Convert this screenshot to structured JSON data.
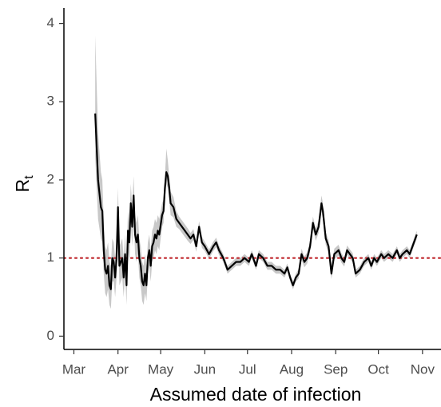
{
  "chart_data": {
    "type": "line",
    "xlabel": "Assumed date of infection",
    "ylabel": "R",
    "ylabel_subscript": "t",
    "xlim": [
      -7,
      258
    ],
    "xticks": [
      {
        "value": 0,
        "label": "Mar"
      },
      {
        "value": 31,
        "label": "Apr"
      },
      {
        "value": 61,
        "label": "May"
      },
      {
        "value": 92,
        "label": "Jun"
      },
      {
        "value": 122,
        "label": "Jul"
      },
      {
        "value": 153,
        "label": "Aug"
      },
      {
        "value": 184,
        "label": "Sep"
      },
      {
        "value": 214,
        "label": "Oct"
      },
      {
        "value": 245,
        "label": "Nov"
      }
    ],
    "ylim": [
      -0.17,
      4.2
    ],
    "yticks": [
      0,
      1,
      2,
      3,
      4
    ],
    "color": "#000000",
    "band_color": "#c8c8c8",
    "reference_line": 1,
    "reference_color": "#c0272d",
    "x": [
      15,
      17,
      19,
      20,
      21,
      22,
      23,
      24,
      25,
      26,
      27,
      28,
      29,
      30,
      31,
      32,
      33,
      34,
      35,
      36,
      37,
      38,
      39,
      40,
      41,
      42,
      43,
      44,
      45,
      46,
      47,
      48,
      49,
      50,
      51,
      52,
      53,
      54,
      55,
      56,
      57,
      58,
      59,
      60,
      62,
      63,
      64,
      65,
      66,
      67,
      68,
      70,
      72,
      74,
      76,
      78,
      80,
      82,
      84,
      86,
      88,
      90,
      92,
      95,
      98,
      100,
      102,
      105,
      108,
      111,
      114,
      117,
      120,
      123,
      125,
      128,
      130,
      133,
      136,
      139,
      142,
      145,
      148,
      150,
      152,
      154,
      156,
      158,
      160,
      162,
      164,
      166,
      168,
      170,
      172,
      174,
      175,
      177,
      179,
      181,
      183,
      186,
      188,
      190,
      192,
      194,
      196,
      198,
      201,
      204,
      207,
      209,
      211,
      213,
      216,
      218,
      221,
      224,
      227,
      229,
      231,
      234,
      236,
      238,
      240,
      241
    ],
    "values": [
      2.85,
      2.0,
      1.65,
      1.6,
      1.1,
      0.85,
      0.8,
      0.9,
      0.65,
      0.6,
      1.0,
      0.95,
      0.75,
      1.0,
      1.65,
      0.9,
      0.95,
      1.0,
      0.75,
      1.05,
      0.65,
      1.35,
      1.2,
      1.7,
      1.4,
      1.8,
      1.3,
      1.2,
      1.3,
      1.0,
      0.9,
      0.7,
      0.65,
      0.8,
      0.65,
      1.0,
      1.1,
      0.9,
      1.15,
      1.2,
      1.3,
      1.25,
      1.35,
      1.3,
      1.55,
      1.6,
      1.9,
      2.1,
      2.05,
      1.9,
      1.7,
      1.65,
      1.5,
      1.45,
      1.4,
      1.35,
      1.3,
      1.25,
      1.3,
      1.15,
      1.4,
      1.2,
      1.15,
      1.05,
      1.15,
      1.2,
      1.1,
      1.0,
      0.85,
      0.9,
      0.95,
      0.95,
      1.0,
      0.95,
      1.05,
      0.9,
      1.05,
      1.0,
      0.9,
      0.9,
      0.85,
      0.85,
      0.8,
      0.88,
      0.75,
      0.65,
      0.75,
      0.8,
      1.05,
      0.95,
      1.0,
      1.15,
      1.45,
      1.3,
      1.4,
      1.7,
      1.6,
      1.25,
      1.15,
      0.8,
      1.05,
      1.1,
      1.0,
      0.95,
      1.1,
      1.05,
      1.0,
      0.8,
      0.85,
      0.95,
      1.0,
      0.9,
      1.0,
      0.95,
      1.05,
      1.0,
      1.05,
      1.0,
      1.1,
      1.0,
      1.05,
      1.1,
      1.05,
      1.15,
      1.25,
      1.3
    ],
    "lower": [
      2.3,
      1.5,
      1.25,
      1.2,
      0.8,
      0.55,
      0.5,
      0.6,
      0.4,
      0.35,
      0.7,
      0.7,
      0.5,
      0.75,
      1.35,
      0.65,
      0.7,
      0.75,
      0.5,
      0.8,
      0.4,
      1.1,
      0.95,
      1.45,
      1.15,
      1.55,
      1.05,
      0.95,
      1.05,
      0.75,
      0.65,
      0.45,
      0.4,
      0.55,
      0.45,
      0.8,
      0.9,
      0.7,
      0.95,
      1.0,
      1.1,
      1.05,
      1.15,
      1.1,
      1.4,
      1.45,
      1.75,
      1.95,
      1.9,
      1.75,
      1.55,
      1.52,
      1.4,
      1.37,
      1.32,
      1.27,
      1.22,
      1.18,
      1.23,
      1.08,
      1.33,
      1.13,
      1.09,
      0.99,
      1.09,
      1.14,
      1.04,
      0.95,
      0.8,
      0.85,
      0.9,
      0.9,
      0.95,
      0.9,
      1.0,
      0.85,
      1.0,
      0.95,
      0.85,
      0.85,
      0.8,
      0.8,
      0.75,
      0.83,
      0.7,
      0.6,
      0.7,
      0.74,
      0.98,
      0.88,
      0.93,
      1.08,
      1.37,
      1.22,
      1.32,
      1.6,
      1.5,
      1.17,
      1.07,
      0.73,
      0.98,
      1.03,
      0.94,
      0.89,
      1.04,
      0.99,
      0.94,
      0.75,
      0.8,
      0.9,
      0.95,
      0.85,
      0.95,
      0.9,
      1.0,
      0.95,
      1.0,
      0.95,
      1.05,
      0.95,
      1.0,
      1.05,
      1.0,
      1.1,
      1.2,
      1.25
    ],
    "upper": [
      3.85,
      2.6,
      2.1,
      2.0,
      1.45,
      1.15,
      1.1,
      1.2,
      0.95,
      0.9,
      1.25,
      1.2,
      1.0,
      1.25,
      1.9,
      1.15,
      1.2,
      1.25,
      1.0,
      1.3,
      0.9,
      1.6,
      1.45,
      1.95,
      1.65,
      2.05,
      1.55,
      1.45,
      1.55,
      1.25,
      1.15,
      0.95,
      0.9,
      1.05,
      0.9,
      1.2,
      1.3,
      1.1,
      1.35,
      1.4,
      1.5,
      1.45,
      1.55,
      1.5,
      1.7,
      1.75,
      2.05,
      2.4,
      2.25,
      2.05,
      1.85,
      1.78,
      1.6,
      1.53,
      1.48,
      1.43,
      1.38,
      1.32,
      1.37,
      1.22,
      1.47,
      1.27,
      1.21,
      1.11,
      1.21,
      1.26,
      1.16,
      1.05,
      0.9,
      0.95,
      1.0,
      1.0,
      1.05,
      1.0,
      1.1,
      0.95,
      1.1,
      1.05,
      0.95,
      0.95,
      0.9,
      0.9,
      0.85,
      0.93,
      0.8,
      0.7,
      0.8,
      0.86,
      1.12,
      1.02,
      1.07,
      1.22,
      1.53,
      1.38,
      1.48,
      1.8,
      1.7,
      1.33,
      1.23,
      0.87,
      1.12,
      1.17,
      1.06,
      1.01,
      1.16,
      1.11,
      1.06,
      0.85,
      0.9,
      1.0,
      1.05,
      0.95,
      1.05,
      1.0,
      1.1,
      1.05,
      1.1,
      1.05,
      1.15,
      1.05,
      1.1,
      1.15,
      1.1,
      1.2,
      1.3,
      1.35
    ]
  }
}
